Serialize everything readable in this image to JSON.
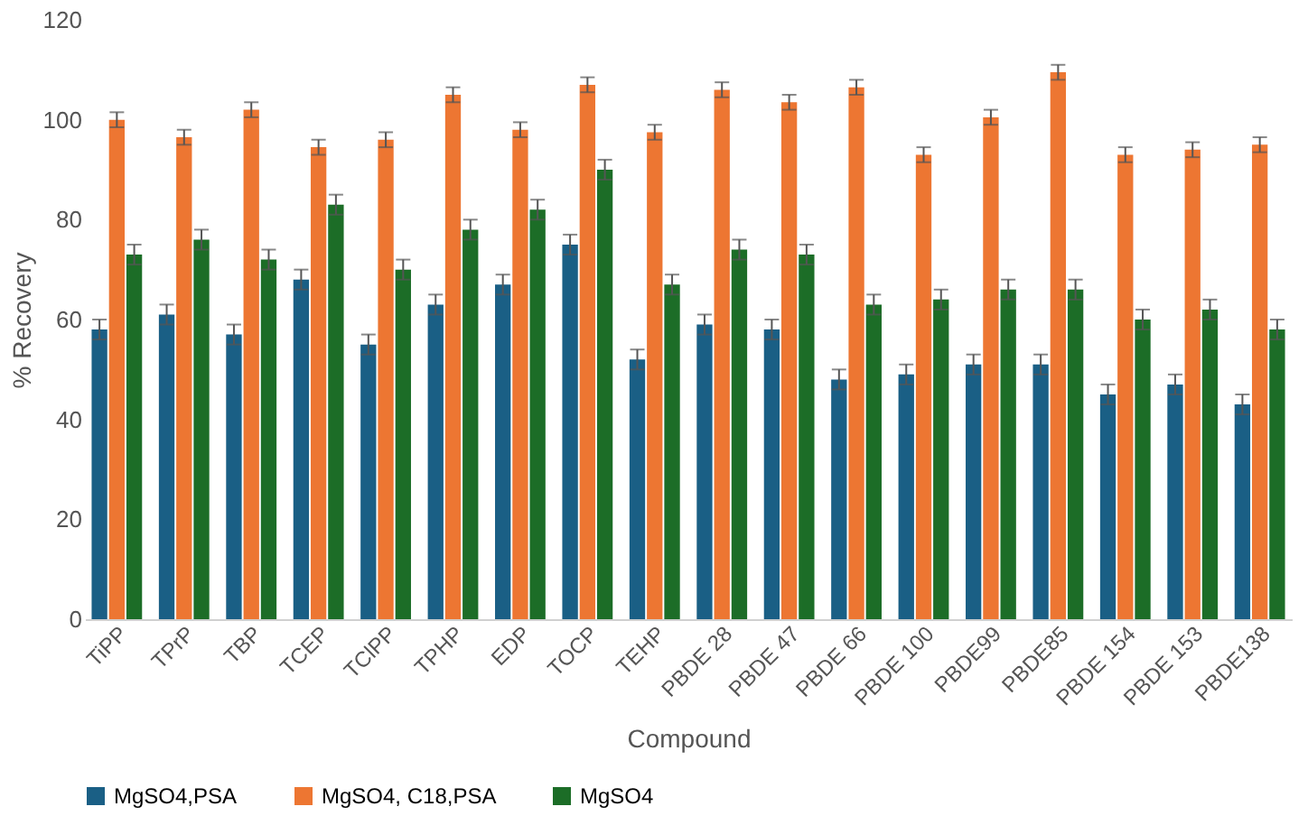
{
  "chart_data": {
    "type": "bar",
    "xlabel": "Compound",
    "ylabel": "% Recovery",
    "categories": [
      "TiPP",
      "TPrP",
      "TBP",
      "TCEP",
      "TClPP",
      "TPHP",
      "EDP",
      "TOCP",
      "TEHP",
      "PBDE 28",
      "PBDE 47",
      "PBDE 66",
      "PBDE 100",
      "PBDE99",
      "PBDE85",
      "PBDE 154",
      "PBDE 153",
      "PBDE138"
    ],
    "series": [
      {
        "name": "MgSO4,PSA",
        "color": "#1a5f85",
        "values": [
          58,
          61,
          57,
          68,
          55,
          63,
          67,
          75,
          52,
          59,
          58,
          48,
          49,
          51,
          51,
          45,
          47,
          43
        ],
        "errors": [
          2,
          2,
          2,
          2,
          2,
          2,
          2,
          2,
          2,
          2,
          2,
          2,
          2,
          2,
          2,
          2,
          2,
          2
        ]
      },
      {
        "name": "MgSO4, C18,PSA",
        "color": "#ed7632",
        "values": [
          100,
          96.5,
          102,
          94.5,
          96,
          105,
          98,
          107,
          97.5,
          106,
          103.5,
          106.5,
          93,
          100.5,
          109.5,
          93,
          94,
          95
        ],
        "errors": [
          1.5,
          1.5,
          1.5,
          1.5,
          1.5,
          1.5,
          1.5,
          1.5,
          1.5,
          1.5,
          1.5,
          1.5,
          1.5,
          1.5,
          1.5,
          1.5,
          1.5,
          1.5
        ]
      },
      {
        "name": "MgSO4",
        "color": "#1c6d27",
        "values": [
          73,
          76,
          72,
          83,
          70,
          78,
          82,
          90,
          67,
          74,
          73,
          63,
          64,
          66,
          66,
          60,
          62,
          58
        ],
        "errors": [
          2,
          2,
          2,
          2,
          2,
          2,
          2,
          2,
          2,
          2,
          2,
          2,
          2,
          2,
          2,
          2,
          2,
          2
        ]
      }
    ],
    "ylim": [
      0,
      120
    ],
    "yticks": [
      0,
      20,
      40,
      60,
      80,
      100,
      120
    ],
    "grid": false,
    "legend": "bottom"
  }
}
